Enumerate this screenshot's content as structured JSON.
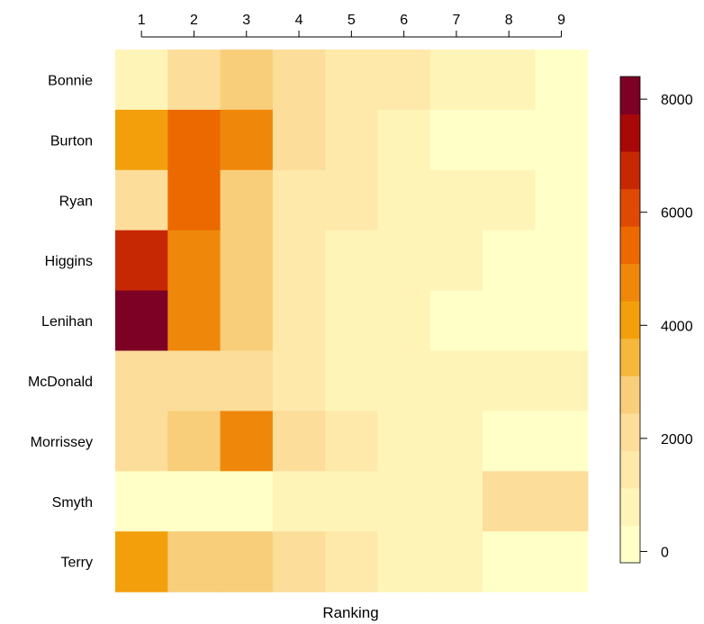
{
  "chart_data": {
    "type": "heatmap",
    "title": "",
    "xlabel": "Ranking",
    "ylabel": "",
    "x_categories": [
      "1",
      "2",
      "3",
      "4",
      "5",
      "6",
      "7",
      "8",
      "9"
    ],
    "y_categories": [
      "Bonnie",
      "Burton",
      "Ryan",
      "Higgins",
      "Lenihan",
      "McDonald",
      "Morrissey",
      "Smyth",
      "Terry"
    ],
    "values": [
      [
        800,
        1800,
        3000,
        2200,
        1700,
        1700,
        900,
        900,
        300
      ],
      [
        4300,
        5700,
        5000,
        2200,
        1700,
        600,
        200,
        200,
        200
      ],
      [
        2200,
        5700,
        3000,
        1400,
        1700,
        900,
        900,
        900,
        300
      ],
      [
        6500,
        5000,
        3000,
        1400,
        900,
        900,
        900,
        300,
        300
      ],
      [
        8000,
        5000,
        3000,
        1400,
        900,
        900,
        300,
        300,
        300
      ],
      [
        2200,
        2200,
        2200,
        1400,
        900,
        900,
        900,
        900,
        900
      ],
      [
        2200,
        3000,
        5000,
        2300,
        1700,
        900,
        900,
        200,
        200
      ],
      [
        200,
        200,
        200,
        900,
        900,
        900,
        900,
        2200,
        2200
      ],
      [
        4000,
        3000,
        3000,
        2200,
        1500,
        900,
        900,
        400,
        400
      ]
    ],
    "color_scale": {
      "min": -200,
      "max": 8400,
      "ticks": [
        0,
        2000,
        4000,
        6000,
        8000
      ],
      "colors": [
        "#FFFFC8",
        "#FFF4B8",
        "#FEE8AA",
        "#FCDD99",
        "#F9CE7A",
        "#F5B83C",
        "#F39F0C",
        "#EF880A",
        "#EC6900",
        "#DE4A03",
        "#C72804",
        "#A60907",
        "#7D0025"
      ]
    },
    "legend": "right",
    "grid": false
  }
}
